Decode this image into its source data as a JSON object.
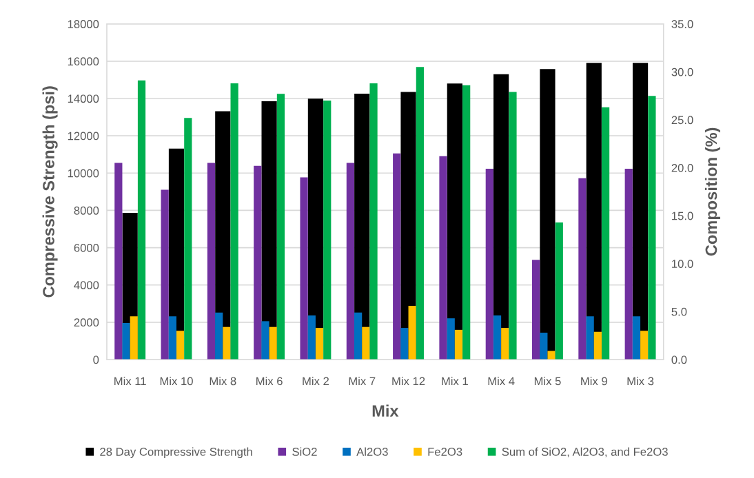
{
  "chart_data": {
    "type": "bar",
    "xlabel": "Mix",
    "ylabel": "Compressive Strength (psi)",
    "y2label": "Composition (%)",
    "categories": [
      "Mix 11",
      "Mix 10",
      "Mix 8",
      "Mix 6",
      "Mix 2",
      "Mix 7",
      "Mix 12",
      "Mix 1",
      "Mix 4",
      "Mix 5",
      "Mix 9",
      "Mix 3"
    ],
    "series": [
      {
        "name": "28 Day Compressive Strength",
        "color": "#000000",
        "values": [
          7870,
          11310,
          13320,
          13850,
          13990,
          14260,
          14350,
          14800,
          15300,
          15580,
          15910,
          15910
        ]
      },
      {
        "name": "SiO2",
        "color": "#7030a0",
        "axis": "y2",
        "values": [
          20.5,
          17.7,
          20.5,
          20.2,
          19.0,
          20.5,
          21.5,
          21.2,
          19.9,
          10.4,
          18.9,
          19.9
        ]
      },
      {
        "name": "Al2O3",
        "color": "#0070c0",
        "axis": "y2",
        "values": [
          3.8,
          4.5,
          4.9,
          4.0,
          4.6,
          4.9,
          3.3,
          4.3,
          4.6,
          2.8,
          4.5,
          4.5
        ]
      },
      {
        "name": "Fe2O3",
        "color": "#ffc000",
        "axis": "y2",
        "values": [
          4.5,
          3.0,
          3.4,
          3.4,
          3.3,
          3.4,
          5.6,
          3.1,
          3.3,
          0.9,
          2.9,
          3.0
        ]
      },
      {
        "name": "Sum of SiO2, Al2O3, and Fe2O3",
        "color": "#00b050",
        "axis": "y2",
        "values": [
          29.1,
          25.2,
          28.8,
          27.7,
          27.0,
          28.8,
          30.5,
          28.6,
          27.9,
          14.3,
          26.3,
          27.5
        ]
      }
    ],
    "ylim": [
      0,
      18000
    ],
    "yticks": [
      0,
      2000,
      4000,
      6000,
      8000,
      10000,
      12000,
      14000,
      16000,
      18000
    ],
    "y2lim": [
      0,
      35
    ],
    "y2ticks": [
      {
        "value": 0,
        "label": "0.0"
      },
      {
        "value": 5,
        "label": "5.0"
      },
      {
        "value": 10,
        "label": "10.0"
      },
      {
        "value": 15,
        "label": "15.0"
      },
      {
        "value": 20,
        "label": "20.0"
      },
      {
        "value": 25,
        "label": "25.0"
      },
      {
        "value": 30,
        "label": "30.0"
      },
      {
        "value": 35,
        "label": "35.0"
      }
    ],
    "grid": "y",
    "legend": "bottom"
  }
}
